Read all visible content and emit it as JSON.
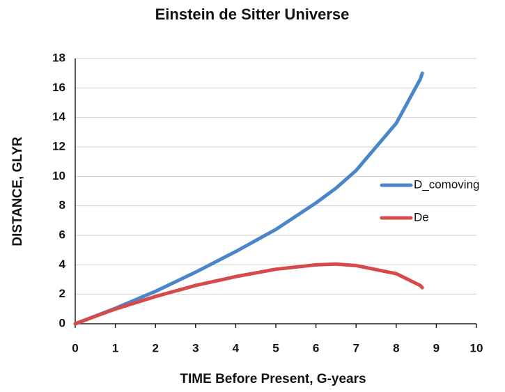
{
  "chart_data": {
    "type": "line",
    "title": "Einstein de Sitter Universe",
    "xlabel": "TIME Before Present, G-years",
    "ylabel": "DISTANCE,  GLYR",
    "x": [
      0,
      1,
      2,
      3,
      4,
      5,
      6,
      6.5,
      7,
      8,
      8.6,
      8.65
    ],
    "series": [
      {
        "name": "D_comoving",
        "color": "#4a86c8",
        "values": [
          0,
          1.05,
          2.2,
          3.5,
          4.9,
          6.4,
          8.2,
          9.2,
          10.4,
          13.6,
          16.6,
          17.0
        ]
      },
      {
        "name": "De",
        "color": "#d64a4a",
        "values": [
          0,
          1.0,
          1.85,
          2.6,
          3.2,
          3.7,
          4.0,
          4.05,
          3.95,
          3.4,
          2.6,
          2.45
        ]
      }
    ],
    "xlim": [
      0,
      10
    ],
    "xticks": [
      0,
      1,
      2,
      3,
      4,
      5,
      6,
      7,
      8,
      9,
      10
    ],
    "ylim": [
      0,
      18
    ],
    "yticks": [
      0,
      2,
      4,
      6,
      8,
      10,
      12,
      14,
      16,
      18
    ],
    "grid": true,
    "legend": "right"
  }
}
